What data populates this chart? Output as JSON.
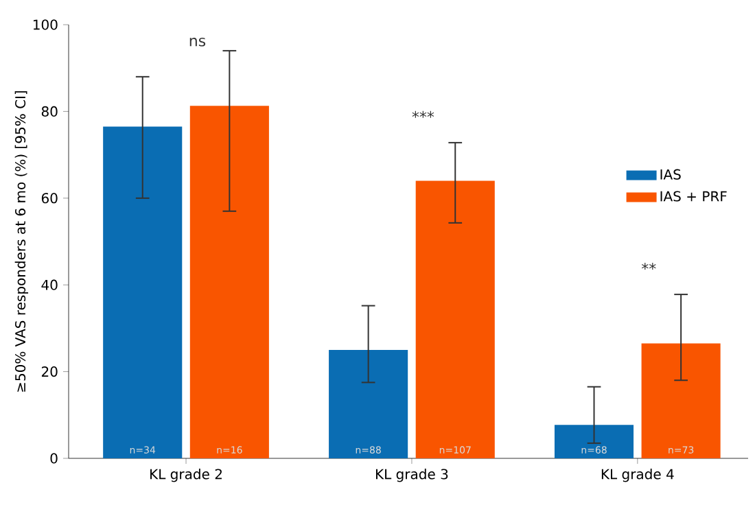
{
  "chart_data": {
    "type": "bar",
    "ylabel": "≥50% VAS responders at 6 mo (%) [95% CI]",
    "categories": [
      "KL grade 2",
      "KL grade 3",
      "KL grade 4"
    ],
    "series": [
      {
        "name": "IAS",
        "color": "#0a6db3",
        "values": [
          76.5,
          25,
          7.7
        ],
        "errors": [
          [
            60,
            88
          ],
          [
            17.5,
            35.2
          ],
          [
            3.5,
            16.5
          ]
        ]
      },
      {
        "name": "IAS + PRF",
        "color": "#f95500",
        "values": [
          81.3,
          64,
          26.5
        ],
        "errors": [
          [
            57,
            94
          ],
          [
            54.3,
            72.8
          ],
          [
            18,
            37.8
          ]
        ]
      }
    ],
    "ylim": [
      0,
      100
    ],
    "yticks": [
      0,
      20,
      40,
      60,
      80,
      100
    ],
    "grid": false,
    "legend": "top right",
    "annotations": [
      "ns",
      "***",
      "**",
      "n=34",
      "n=16",
      "n=88",
      "n=107",
      "n=68",
      "n=73"
    ]
  }
}
